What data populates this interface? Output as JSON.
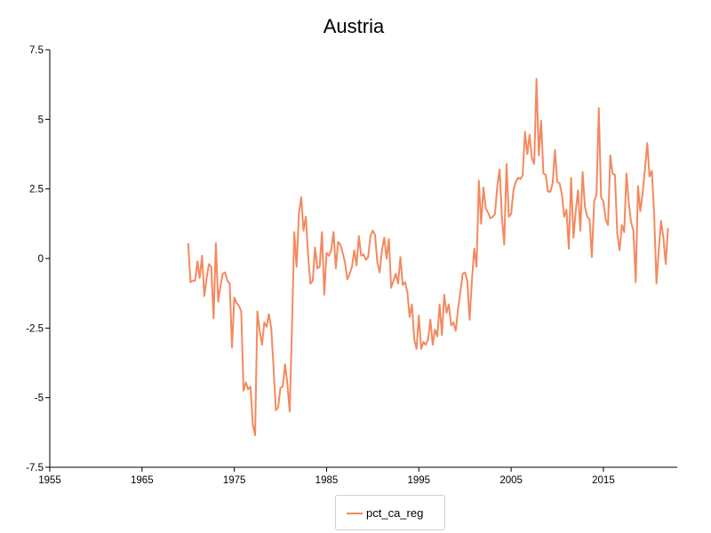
{
  "chart_data": {
    "type": "line",
    "title": "Austria",
    "xlabel": "",
    "ylabel": "",
    "xlim": [
      1955,
      2023
    ],
    "ylim": [
      -7.5,
      7.5
    ],
    "x_ticks": [
      1955,
      1965,
      1975,
      1985,
      1995,
      2005,
      2015
    ],
    "x_tick_labels": [
      "1955",
      "1965",
      "1975",
      "1985",
      "1995",
      "2005",
      "2015"
    ],
    "y_ticks": [
      -7.5,
      -5,
      -2.5,
      0,
      2.5,
      5,
      7.5
    ],
    "y_tick_labels": [
      "-7.5",
      "-5",
      "-2.5",
      "0",
      "2.5",
      "5",
      "7.5"
    ],
    "grid": false,
    "legend_position": "bottom-center",
    "series": [
      {
        "name": "pct_ca_reg",
        "color": "#f4895f",
        "x": [
          1970.0,
          1970.25,
          1970.5,
          1970.75,
          1971.0,
          1971.25,
          1971.5,
          1971.75,
          1972.0,
          1972.25,
          1972.5,
          1972.75,
          1973.0,
          1973.25,
          1973.5,
          1973.75,
          1974.0,
          1974.25,
          1974.5,
          1974.75,
          1975.0,
          1975.25,
          1975.5,
          1975.75,
          1976.0,
          1976.25,
          1976.5,
          1976.75,
          1977.0,
          1977.25,
          1977.5,
          1977.75,
          1978.0,
          1978.25,
          1978.5,
          1978.75,
          1979.0,
          1979.25,
          1979.5,
          1979.75,
          1980.0,
          1980.25,
          1980.5,
          1980.75,
          1981.0,
          1981.25,
          1981.5,
          1981.75,
          1982.0,
          1982.25,
          1982.5,
          1982.75,
          1983.0,
          1983.25,
          1983.5,
          1983.75,
          1984.0,
          1984.25,
          1984.5,
          1984.75,
          1985.0,
          1985.25,
          1985.5,
          1985.75,
          1986.0,
          1986.25,
          1986.5,
          1986.75,
          1987.0,
          1987.25,
          1987.5,
          1987.75,
          1988.0,
          1988.25,
          1988.5,
          1988.75,
          1989.0,
          1989.25,
          1989.5,
          1989.75,
          1990.0,
          1990.25,
          1990.5,
          1990.75,
          1991.0,
          1991.25,
          1991.5,
          1991.75,
          1992.0,
          1992.25,
          1992.5,
          1992.75,
          1993.0,
          1993.25,
          1993.5,
          1993.75,
          1994.0,
          1994.25,
          1994.5,
          1994.75,
          1995.0,
          1995.25,
          1995.5,
          1995.75,
          1996.0,
          1996.25,
          1996.5,
          1996.75,
          1997.0,
          1997.25,
          1997.5,
          1997.75,
          1998.0,
          1998.25,
          1998.5,
          1998.75,
          1999.0,
          1999.25,
          1999.5,
          1999.75,
          2000.0,
          2000.25,
          2000.5,
          2000.75,
          2001.0,
          2001.25,
          2001.5,
          2001.75,
          2002.0,
          2002.25,
          2002.5,
          2002.75,
          2003.0,
          2003.25,
          2003.5,
          2003.75,
          2004.0,
          2004.25,
          2004.5,
          2004.75,
          2005.0,
          2005.25,
          2005.5,
          2005.75,
          2006.0,
          2006.25,
          2006.5,
          2006.75,
          2007.0,
          2007.25,
          2007.5,
          2007.75,
          2008.0,
          2008.25,
          2008.5,
          2008.75,
          2009.0,
          2009.25,
          2009.5,
          2009.75,
          2010.0,
          2010.25,
          2010.5,
          2010.75,
          2011.0,
          2011.25,
          2011.5,
          2011.75,
          2012.0,
          2012.25,
          2012.5,
          2012.75,
          2013.0,
          2013.25,
          2013.5,
          2013.75,
          2014.0,
          2014.25,
          2014.5,
          2014.75,
          2015.0,
          2015.25,
          2015.5,
          2015.75,
          2016.0,
          2016.25,
          2016.5,
          2016.75,
          2017.0,
          2017.25,
          2017.5,
          2017.75,
          2018.0,
          2018.25,
          2018.5,
          2018.75,
          2019.0,
          2019.25,
          2019.5,
          2019.75,
          2020.0,
          2020.25,
          2020.5,
          2020.75,
          2021.0,
          2021.25,
          2021.5,
          2021.75,
          2022.0
        ],
        "values": [
          0.55,
          -0.85,
          -0.8,
          -0.8,
          -0.1,
          -0.7,
          0.1,
          -1.35,
          -0.7,
          -0.2,
          -0.3,
          -2.15,
          0.55,
          -1.55,
          -1.0,
          -0.55,
          -0.5,
          -0.8,
          -0.9,
          -3.2,
          -1.4,
          -1.6,
          -1.7,
          -1.9,
          -4.75,
          -4.45,
          -4.7,
          -4.6,
          -5.95,
          -6.35,
          -1.9,
          -2.6,
          -3.1,
          -2.3,
          -2.45,
          -2.0,
          -2.5,
          -3.9,
          -5.45,
          -5.35,
          -4.65,
          -4.6,
          -3.8,
          -4.5,
          -5.5,
          -2.5,
          0.95,
          -0.3,
          1.6,
          2.2,
          1.0,
          1.5,
          0.1,
          -0.9,
          -0.8,
          0.4,
          -0.35,
          -0.3,
          0.95,
          -1.3,
          0.2,
          0.1,
          0.3,
          0.95,
          -0.35,
          0.6,
          0.5,
          0.2,
          -0.15,
          -0.75,
          -0.55,
          -0.3,
          0.3,
          -0.25,
          0.8,
          0.1,
          0.15,
          -0.05,
          0.05,
          0.8,
          1.0,
          0.85,
          -0.15,
          -0.5,
          0.3,
          0.75,
          0.0,
          0.7,
          -1.05,
          -0.8,
          -0.55,
          -0.9,
          0.05,
          -0.95,
          -0.85,
          -1.2,
          -2.1,
          -1.65,
          -2.9,
          -3.25,
          -2.05,
          -3.25,
          -3.0,
          -3.1,
          -2.9,
          -2.2,
          -3.1,
          -2.55,
          -2.8,
          -1.65,
          -2.75,
          -1.3,
          -1.95,
          -1.65,
          -2.4,
          -2.3,
          -2.6,
          -1.8,
          -1.2,
          -0.55,
          -0.5,
          -0.8,
          -2.2,
          -0.8,
          0.35,
          -0.3,
          2.8,
          1.25,
          2.55,
          1.8,
          1.65,
          1.45,
          1.5,
          1.6,
          2.6,
          3.2,
          1.5,
          0.5,
          3.4,
          1.5,
          1.6,
          2.45,
          2.75,
          2.9,
          2.85,
          3.0,
          4.55,
          3.75,
          4.45,
          3.6,
          3.4,
          6.45,
          3.7,
          4.95,
          3.05,
          3.0,
          2.4,
          2.4,
          2.7,
          3.9,
          2.75,
          2.7,
          2.3,
          1.5,
          1.75,
          0.35,
          2.9,
          0.75,
          1.7,
          2.45,
          1.0,
          3.1,
          1.85,
          1.5,
          1.4,
          0.05,
          2.05,
          2.3,
          5.4,
          2.2,
          2.05,
          1.4,
          1.2,
          3.7,
          3.05,
          3.0,
          0.9,
          0.3,
          1.2,
          0.95,
          3.05,
          2.0,
          1.3,
          1.0,
          -0.85,
          2.6,
          1.7,
          2.35,
          3.2,
          4.15,
          2.95,
          3.15,
          1.6,
          -0.9,
          0.3,
          1.35,
          0.75,
          -0.2,
          1.1
        ]
      }
    ]
  }
}
